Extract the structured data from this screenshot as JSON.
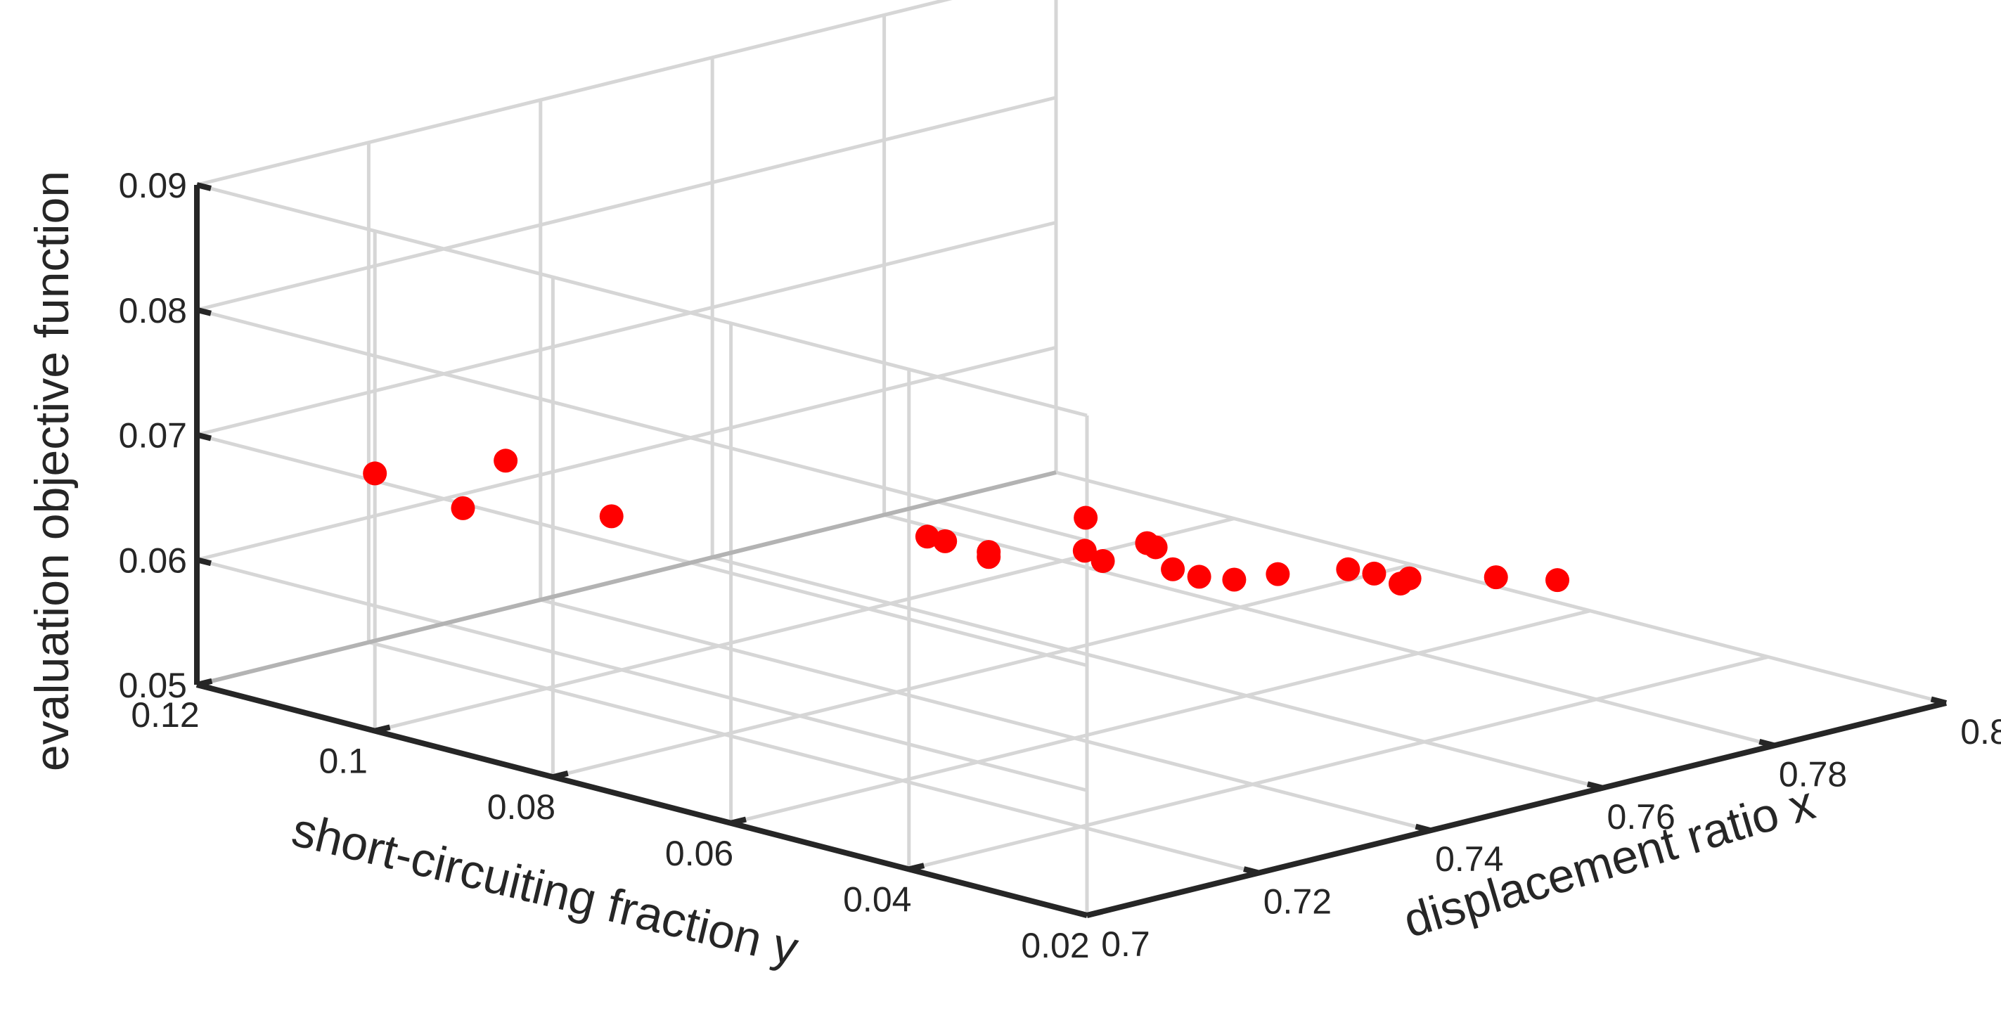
{
  "chart_data": {
    "type": "scatter",
    "projection": "3d",
    "xlabel": "displacement ratio x",
    "ylabel": "short-circuiting fraction y",
    "zlabel": "evaluation objective function",
    "xlim": [
      0.7,
      0.8
    ],
    "ylim": [
      0.02,
      0.12
    ],
    "zlim": [
      0.05,
      0.09
    ],
    "x_ticks": [
      "0.7",
      "0.72",
      "0.74",
      "0.76",
      "0.78",
      "0.8"
    ],
    "y_ticks": [
      "0.02",
      "0.04",
      "0.06",
      "0.08",
      "0.1",
      "0.12"
    ],
    "z_ticks": [
      "0.05",
      "0.06",
      "0.07",
      "0.08",
      "0.09"
    ],
    "grid": true,
    "marker_color": "#ff0000",
    "series": [
      {
        "points": [
          {
            "x": 0.7,
            "y": 0.1,
            "z": 0.0706
          },
          {
            "x": 0.703,
            "y": 0.093,
            "z": 0.0686
          },
          {
            "x": 0.709,
            "y": 0.094,
            "z": 0.0712
          },
          {
            "x": 0.712,
            "y": 0.085,
            "z": 0.0679
          },
          {
            "x": 0.727,
            "y": 0.064,
            "z": 0.0676
          },
          {
            "x": 0.727,
            "y": 0.062,
            "z": 0.0676
          },
          {
            "x": 0.73,
            "y": 0.06,
            "z": 0.0666
          },
          {
            "x": 0.73,
            "y": 0.06,
            "z": 0.0662
          },
          {
            "x": 0.735,
            "y": 0.052,
            "z": 0.0665
          },
          {
            "x": 0.733,
            "y": 0.052,
            "z": 0.0703
          },
          {
            "x": 0.736,
            "y": 0.055,
            "z": 0.0666
          },
          {
            "x": 0.736,
            "y": 0.048,
            "z": 0.0685
          },
          {
            "x": 0.737,
            "y": 0.048,
            "z": 0.068
          },
          {
            "x": 0.739,
            "y": 0.048,
            "z": 0.0659
          },
          {
            "x": 0.74,
            "y": 0.046,
            "z": 0.0655
          },
          {
            "x": 0.742,
            "y": 0.044,
            "z": 0.0653
          },
          {
            "x": 0.745,
            "y": 0.042,
            "z": 0.0656
          },
          {
            "x": 0.748,
            "y": 0.037,
            "z": 0.0664
          },
          {
            "x": 0.75,
            "y": 0.036,
            "z": 0.0659
          },
          {
            "x": 0.751,
            "y": 0.034,
            "z": 0.0653
          },
          {
            "x": 0.751,
            "y": 0.033,
            "z": 0.0659
          },
          {
            "x": 0.759,
            "y": 0.031,
            "z": 0.065
          },
          {
            "x": 0.762,
            "y": 0.027,
            "z": 0.065
          }
        ]
      }
    ]
  }
}
